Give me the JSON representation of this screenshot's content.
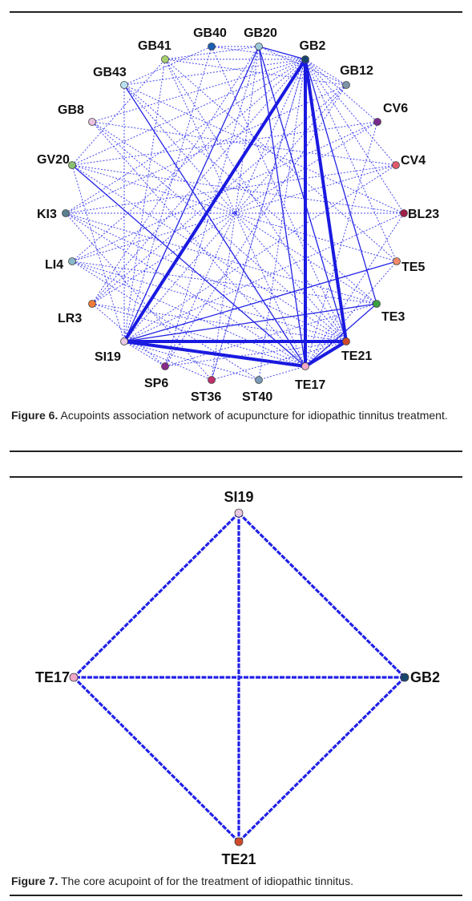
{
  "figure6": {
    "caption_label": "Figure 6.",
    "caption_text": " Acupoints association network of acupuncture for idiopathic tinnitus treatment.",
    "nodes": [
      {
        "id": "GB40",
        "color": "#1a5fb4"
      },
      {
        "id": "GB20",
        "color": "#9ec9d9"
      },
      {
        "id": "GB2",
        "color": "#18456b"
      },
      {
        "id": "GB12",
        "color": "#7e95a8"
      },
      {
        "id": "CV6",
        "color": "#7a2a8c"
      },
      {
        "id": "CV4",
        "color": "#e05a6a"
      },
      {
        "id": "BL23",
        "color": "#a0204a"
      },
      {
        "id": "TE5",
        "color": "#f08a6a"
      },
      {
        "id": "TE3",
        "color": "#3aa040"
      },
      {
        "id": "TE21",
        "color": "#d04a2a"
      },
      {
        "id": "TE17",
        "color": "#f0a8c8"
      },
      {
        "id": "ST40",
        "color": "#7a9ab8"
      },
      {
        "id": "ST36",
        "color": "#c0306a"
      },
      {
        "id": "SP6",
        "color": "#8a2a8a"
      },
      {
        "id": "SI19",
        "color": "#e8c8e0"
      },
      {
        "id": "LR3",
        "color": "#f07a3a"
      },
      {
        "id": "LI4",
        "color": "#8ab8c8"
      },
      {
        "id": "KI3",
        "color": "#5a8090"
      },
      {
        "id": "GV20",
        "color": "#8ac070"
      },
      {
        "id": "GB8",
        "color": "#e8c0e0"
      },
      {
        "id": "GB43",
        "color": "#b8e0f0"
      },
      {
        "id": "GB41",
        "color": "#a8d070"
      }
    ],
    "thick_edges": [
      [
        "GB2",
        "SI19"
      ],
      [
        "GB2",
        "TE21"
      ],
      [
        "GB2",
        "TE17"
      ],
      [
        "SI19",
        "TE21"
      ],
      [
        "SI19",
        "TE17"
      ],
      [
        "TE21",
        "TE17"
      ]
    ],
    "solid_edges": [
      [
        "GB20",
        "GB2"
      ],
      [
        "GB20",
        "SI19"
      ],
      [
        "GB20",
        "TE17"
      ],
      [
        "GB20",
        "TE21"
      ],
      [
        "GB43",
        "TE17"
      ],
      [
        "GV20",
        "TE17"
      ],
      [
        "GB2",
        "TE3"
      ],
      [
        "SI19",
        "TE3"
      ],
      [
        "SI19",
        "TE5"
      ],
      [
        "TE17",
        "TE3"
      ],
      [
        "GB2",
        "SI19"
      ]
    ],
    "dotted_edges": [
      [
        "GB40",
        "GB20"
      ],
      [
        "GB40",
        "GB2"
      ],
      [
        "GB41",
        "GB2"
      ],
      [
        "GB41",
        "TE17"
      ],
      [
        "GB41",
        "SI19"
      ],
      [
        "GB43",
        "GB2"
      ],
      [
        "GB43",
        "SI19"
      ],
      [
        "GB8",
        "GB2"
      ],
      [
        "GB8",
        "TE17"
      ],
      [
        "GV20",
        "GB2"
      ],
      [
        "GV20",
        "TE21"
      ],
      [
        "GV20",
        "SI19"
      ],
      [
        "KI3",
        "GB2"
      ],
      [
        "KI3",
        "TE17"
      ],
      [
        "KI3",
        "TE21"
      ],
      [
        "LI4",
        "GB2"
      ],
      [
        "LI4",
        "TE21"
      ],
      [
        "LI4",
        "TE17"
      ],
      [
        "LR3",
        "GB2"
      ],
      [
        "LR3",
        "TE21"
      ],
      [
        "LR3",
        "TE17"
      ],
      [
        "SP6",
        "GB2"
      ],
      [
        "SP6",
        "TE21"
      ],
      [
        "ST36",
        "GB2"
      ],
      [
        "ST36",
        "TE21"
      ],
      [
        "ST40",
        "GB2"
      ],
      [
        "ST40",
        "SI19"
      ],
      [
        "TE3",
        "GB43"
      ],
      [
        "TE5",
        "GB41"
      ],
      [
        "TE5",
        "GV20"
      ],
      [
        "BL23",
        "GV20"
      ],
      [
        "BL23",
        "KI3"
      ],
      [
        "BL23",
        "GB43"
      ],
      [
        "CV4",
        "GB8"
      ],
      [
        "CV4",
        "KI3"
      ],
      [
        "CV4",
        "LI4"
      ],
      [
        "CV6",
        "GV20"
      ],
      [
        "CV6",
        "LI4"
      ],
      [
        "CV6",
        "LR3"
      ],
      [
        "GB12",
        "GB41"
      ],
      [
        "GB12",
        "KI3"
      ],
      [
        "GB12",
        "LR3"
      ],
      [
        "GB12",
        "SI19"
      ],
      [
        "GB12",
        "SP6"
      ],
      [
        "GB20",
        "GB41"
      ],
      [
        "GB20",
        "LR3"
      ],
      [
        "GB20",
        "SP6"
      ],
      [
        "GB20",
        "ST36"
      ],
      [
        "GB40",
        "SI19"
      ],
      [
        "GB40",
        "TE21"
      ],
      [
        "GB2",
        "GB12"
      ],
      [
        "GB2",
        "CV6"
      ],
      [
        "GB2",
        "CV4"
      ],
      [
        "GB2",
        "BL23"
      ],
      [
        "GB2",
        "TE5"
      ],
      [
        "GB2",
        "ST36"
      ],
      [
        "GB20",
        "GB12"
      ],
      [
        "TE21",
        "GB41"
      ],
      [
        "TE21",
        "GB43"
      ],
      [
        "TE21",
        "GB8"
      ],
      [
        "TE17",
        "CV6"
      ],
      [
        "TE17",
        "BL23"
      ],
      [
        "TE17",
        "TE5"
      ],
      [
        "TE17",
        "ST40"
      ],
      [
        "SI19",
        "CV4"
      ],
      [
        "SI19",
        "BL23"
      ],
      [
        "SI19",
        "ST36"
      ],
      [
        "SI19",
        "SP6"
      ],
      [
        "TE3",
        "GB8"
      ],
      [
        "TE3",
        "KI3"
      ],
      [
        "TE3",
        "LI4"
      ],
      [
        "TE3",
        "SP6"
      ],
      [
        "LR3",
        "SP6"
      ],
      [
        "GV20",
        "GB41"
      ],
      [
        "GB43",
        "GB40"
      ],
      [
        "LI4",
        "ST40"
      ],
      [
        "KI3",
        "ST36"
      ]
    ]
  },
  "figure7": {
    "caption_label": "Figure 7.",
    "caption_text": " The core acupoint of for the treatment of idiopathic tinnitus.",
    "nodes": [
      {
        "id": "SI19",
        "color": "#e8c8e0"
      },
      {
        "id": "GB2",
        "color": "#18456b"
      },
      {
        "id": "TE21",
        "color": "#d04a2a"
      },
      {
        "id": "TE17",
        "color": "#f0a8c8"
      }
    ],
    "edges": [
      [
        "SI19",
        "GB2"
      ],
      [
        "SI19",
        "TE21"
      ],
      [
        "SI19",
        "TE17"
      ],
      [
        "GB2",
        "TE21"
      ],
      [
        "GB2",
        "TE17"
      ],
      [
        "TE21",
        "TE17"
      ]
    ]
  }
}
